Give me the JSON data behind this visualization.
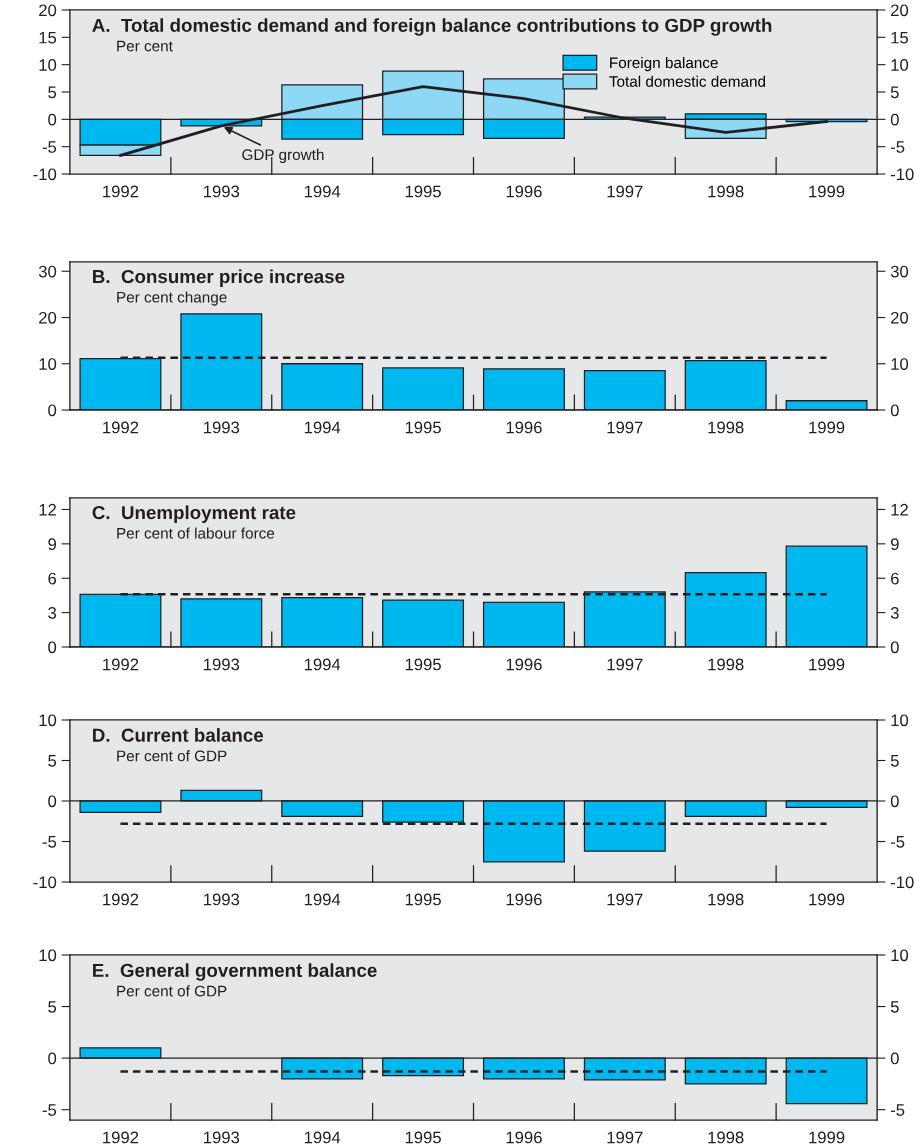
{
  "chart_data": [
    {
      "type": "bar",
      "title": "A.  Total domestic demand and foreign balance contributions to GDP growth",
      "subtitle": "Per cent",
      "categories": [
        "1992",
        "1993",
        "1994",
        "1995",
        "1996",
        "1997",
        "1998",
        "1999"
      ],
      "stacked": true,
      "legend": "top right",
      "series": [
        {
          "name": "Foreign balance",
          "color": "#00b8f0",
          "values": [
            -4.7,
            -1.2,
            -3.6,
            -2.8,
            -3.5,
            0.4,
            1.0,
            -0.4
          ]
        },
        {
          "name": "Total domestic demand",
          "color": "#8dd8f5",
          "values": [
            -1.9,
            null,
            6.3,
            8.8,
            7.4,
            null,
            -3.5,
            null
          ]
        },
        {
          "type": "line",
          "color": "#231f20",
          "values": [
            -6.6,
            -1.2,
            2.5,
            6.0,
            3.8,
            0.2,
            -2.4,
            -0.4
          ]
        }
      ],
      "annotations": [
        {
          "text": "GDP growth",
          "x": "1993",
          "y": -1.2
        }
      ],
      "ylim": [
        -10,
        20
      ],
      "yticks": [
        -10,
        -5,
        0,
        5,
        10,
        15,
        20
      ],
      "y2lim": [
        -10,
        20
      ],
      "y2ticks": [
        -10,
        -5,
        0,
        5,
        10,
        15,
        20
      ]
    },
    {
      "type": "bar",
      "title": "B.  Consumer price increase",
      "subtitle": "Per cent change",
      "categories": [
        "1992",
        "1993",
        "1994",
        "1995",
        "1996",
        "1997",
        "1998",
        "1999"
      ],
      "color": "#00b8f0",
      "values": [
        11.1,
        20.8,
        10.0,
        9.1,
        8.9,
        8.5,
        10.7,
        2.0
      ],
      "ref_lines": [
        {
          "axis": "y",
          "value": 11.3,
          "line_style": "dashed"
        }
      ],
      "ylim": [
        0,
        32
      ],
      "yticks": [
        0,
        10,
        20,
        30
      ],
      "y2lim": [
        0,
        32
      ],
      "y2ticks": [
        0,
        10,
        20,
        30
      ]
    },
    {
      "type": "bar",
      "title": "C.  Unemployment rate",
      "subtitle": "Per cent of labour force",
      "categories": [
        "1992",
        "1993",
        "1994",
        "1995",
        "1996",
        "1997",
        "1998",
        "1999"
      ],
      "color": "#00b8f0",
      "values": [
        4.6,
        4.2,
        4.3,
        4.1,
        3.9,
        4.8,
        6.5,
        8.8
      ],
      "ref_lines": [
        {
          "axis": "y",
          "value": 4.6,
          "line_style": "dashed"
        }
      ],
      "ylim": [
        0,
        13
      ],
      "yticks": [
        0,
        3,
        6,
        9,
        12
      ],
      "y2lim": [
        0,
        13
      ],
      "y2ticks": [
        0,
        3,
        6,
        9,
        12
      ]
    },
    {
      "type": "bar",
      "title": "D.  Current balance",
      "subtitle": "Per cent of GDP",
      "categories": [
        "1992",
        "1993",
        "1994",
        "1995",
        "1996",
        "1997",
        "1998",
        "1999"
      ],
      "color": "#00b8f0",
      "values": [
        -1.4,
        1.3,
        -1.9,
        -2.6,
        -7.5,
        -6.2,
        -1.9,
        -0.8
      ],
      "ref_lines": [
        {
          "axis": "y",
          "value": -2.8,
          "line_style": "dashed"
        }
      ],
      "ylim": [
        -10,
        10
      ],
      "yticks": [
        -10,
        -5,
        0,
        5,
        10
      ],
      "y2lim": [
        -10,
        10
      ],
      "y2ticks": [
        -10,
        -5,
        0,
        5,
        10
      ]
    },
    {
      "type": "bar",
      "title": "E.  General government balance",
      "subtitle": "Per cent of GDP",
      "categories": [
        "1992",
        "1993",
        "1994",
        "1995",
        "1996",
        "1997",
        "1998",
        "1999"
      ],
      "color": "#00b8f0",
      "values": [
        1.0,
        null,
        -2.0,
        -1.7,
        -2.0,
        -2.1,
        -2.5,
        -4.4
      ],
      "ref_lines": [
        {
          "axis": "y",
          "value": -1.3,
          "line_style": "dashed"
        }
      ],
      "ylim": [
        -6,
        10
      ],
      "yticks": [
        -5,
        0,
        5,
        10
      ],
      "y2lim": [
        -6,
        10
      ],
      "y2ticks": [
        -5,
        0,
        5,
        10
      ]
    }
  ]
}
